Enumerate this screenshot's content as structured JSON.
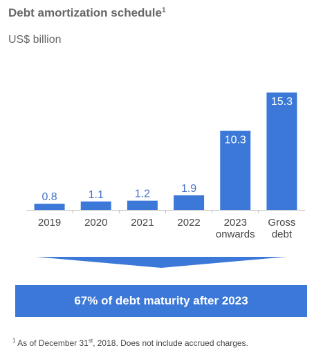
{
  "header": {
    "title": "Debt amortization schedule",
    "title_sup": "1",
    "subtitle": "US$ billion"
  },
  "banner": {
    "text": "67% of debt maturity after 2023"
  },
  "footnote": {
    "marker": "1",
    "prefix": " As of December 31",
    "ordinal": "st",
    "suffix": ", 2018. Does not include accrued charges."
  },
  "colors": {
    "bar": "#3c78d8",
    "label": "#4472c4",
    "axis": "#bfbfbf"
  },
  "chart_data": {
    "type": "bar",
    "categories": [
      [
        "2019"
      ],
      [
        "2020"
      ],
      [
        "2021"
      ],
      [
        "2022"
      ],
      [
        "2023",
        "onwards"
      ],
      [
        "Gross",
        "debt"
      ]
    ],
    "values": [
      0.8,
      1.1,
      1.2,
      1.9,
      10.3,
      15.3
    ],
    "value_labels": [
      "0.8",
      "1.1",
      "1.2",
      "1.9",
      "10.3",
      "15.3"
    ],
    "ylim": [
      0,
      15.3
    ],
    "title": "Debt amortization schedule",
    "subtitle": "US$ billion"
  }
}
